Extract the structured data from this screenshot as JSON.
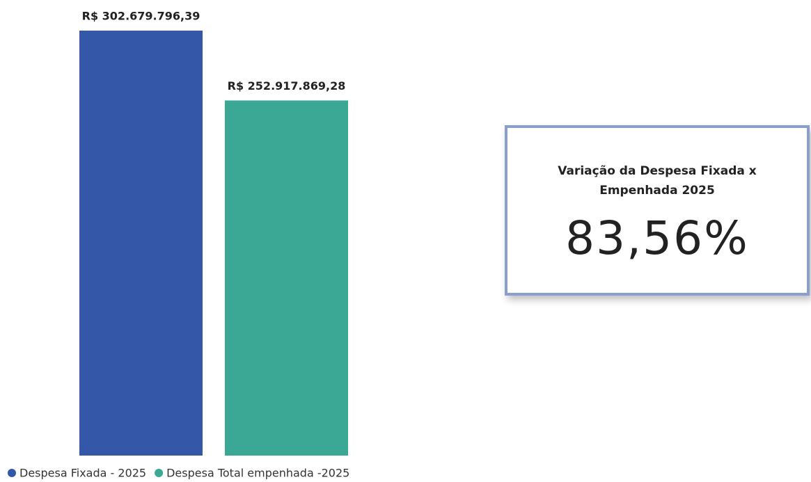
{
  "chart_data": {
    "type": "bar",
    "series": [
      {
        "name": "Despesa Fixada - 2025",
        "color": "#3457a8",
        "values": [
          302679796.39
        ],
        "value_labels": [
          "R$ 302.679.796,39"
        ]
      },
      {
        "name": "Despesa Total empenhada -2025",
        "color": "#3aa894",
        "values": [
          252917869.28
        ],
        "value_labels": [
          "R$ 252.917.869,28"
        ]
      }
    ]
  },
  "card": {
    "title": "Variação da Despesa Fixada x Empenhada 2025",
    "value": "83,56%"
  }
}
